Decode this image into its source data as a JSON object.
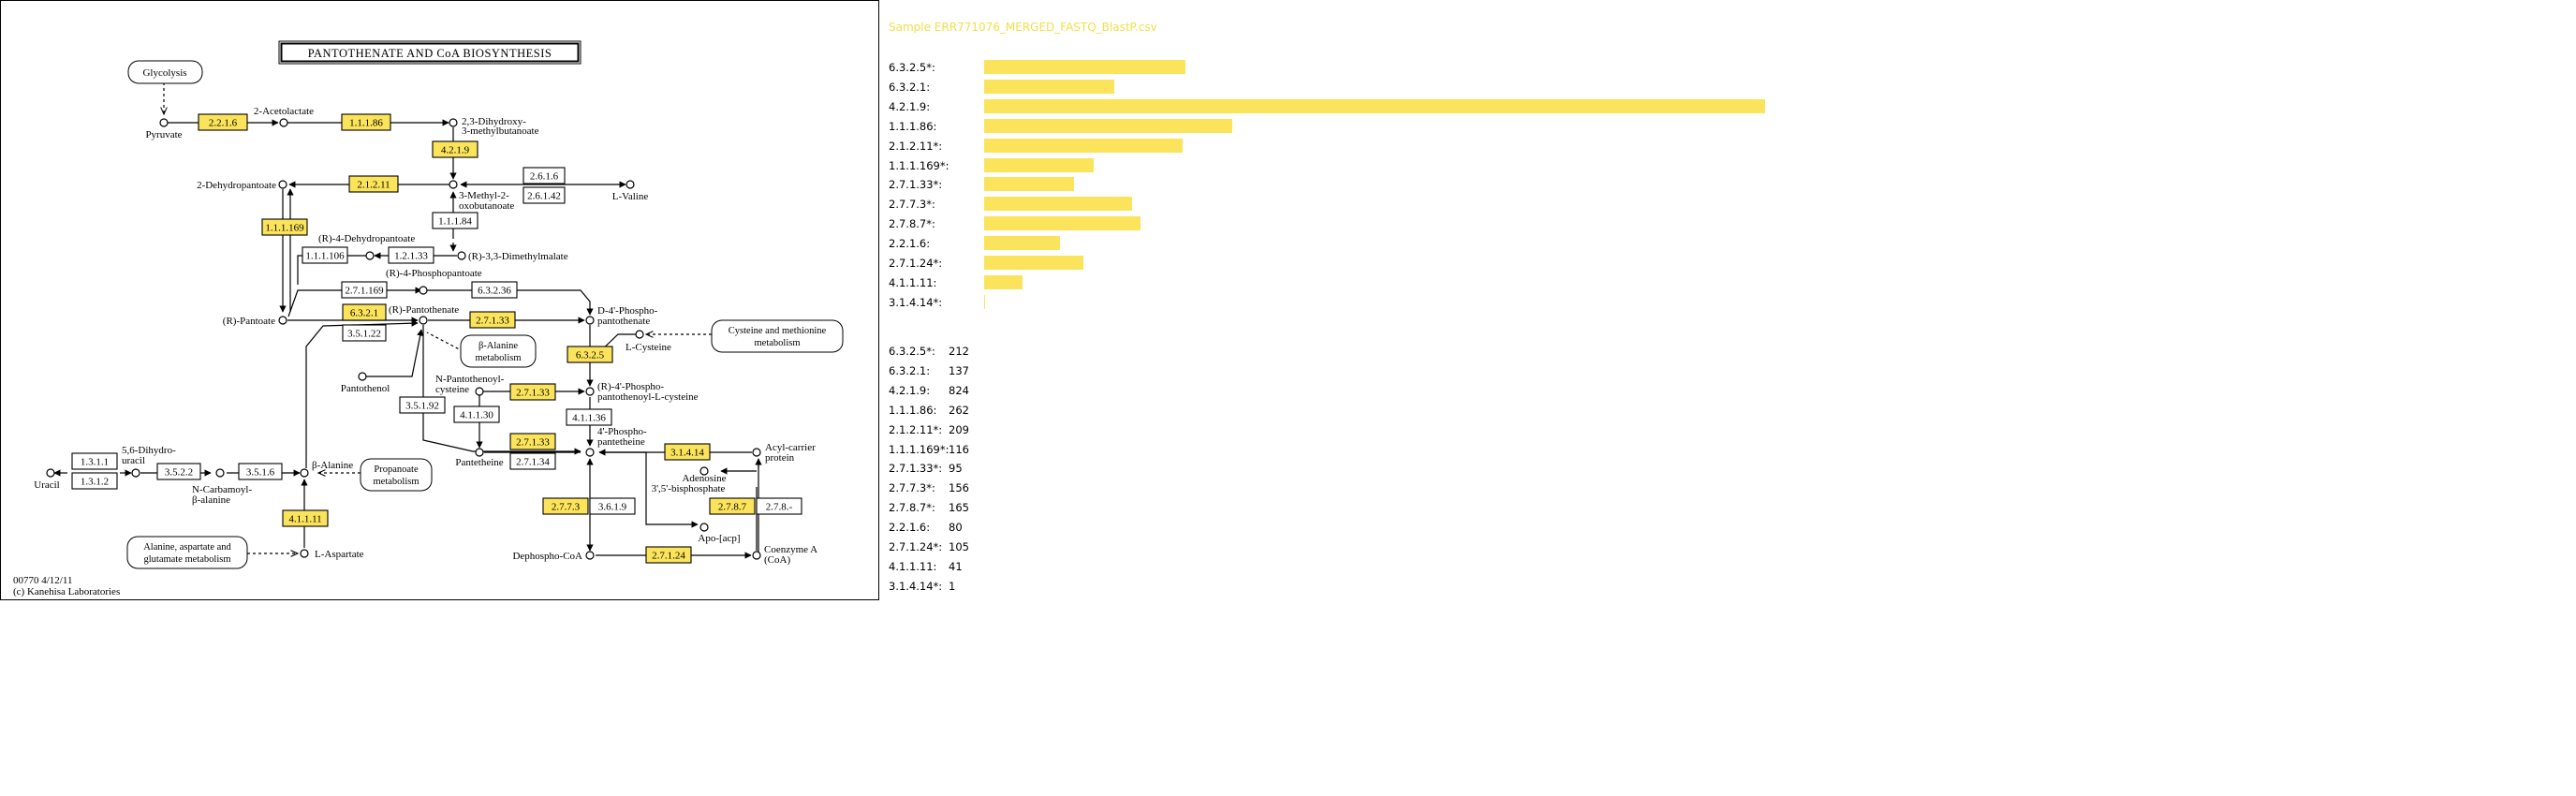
{
  "map": {
    "title": "PANTOTHENATE AND CoA BIOSYNTHESIS",
    "footer_code": "00770 4/12/11",
    "footer_copyright": "(c) Kanehisa Laboratories",
    "highlight_color": "#fbe45b",
    "ec_boxes": [
      {
        "label": "2.2.1.6",
        "hl": true
      },
      {
        "label": "1.1.1.86",
        "hl": true
      },
      {
        "label": "4.2.1.9",
        "hl": true
      },
      {
        "label": "2.1.2.11",
        "hl": true
      },
      {
        "label": "2.6.1.6",
        "hl": false
      },
      {
        "label": "2.6.1.42",
        "hl": false
      },
      {
        "label": "1.1.1.84",
        "hl": false
      },
      {
        "label": "1.1.1.169",
        "hl": true
      },
      {
        "label": "1.1.1.106",
        "hl": false
      },
      {
        "label": "1.2.1.33",
        "hl": false
      },
      {
        "label": "2.7.1.169",
        "hl": false
      },
      {
        "label": "6.3.2.36",
        "hl": false
      },
      {
        "label": "6.3.2.1",
        "hl": true
      },
      {
        "label": "2.7.1.33",
        "hl": true
      },
      {
        "label": "3.5.1.22",
        "hl": false
      },
      {
        "label": "6.3.2.5",
        "hl": true
      },
      {
        "label": "3.5.1.92",
        "hl": false
      },
      {
        "label": "2.7.1.33",
        "hl": true
      },
      {
        "label": "4.1.1.30",
        "hl": false
      },
      {
        "label": "4.1.1.36",
        "hl": false
      },
      {
        "label": "2.7.1.33",
        "hl": true
      },
      {
        "label": "2.7.1.34",
        "hl": false
      },
      {
        "label": "3.1.4.14",
        "hl": true
      },
      {
        "label": "1.3.1.1",
        "hl": false
      },
      {
        "label": "1.3.1.2",
        "hl": false
      },
      {
        "label": "3.5.2.2",
        "hl": false
      },
      {
        "label": "3.5.1.6",
        "hl": false
      },
      {
        "label": "4.1.1.11",
        "hl": true
      },
      {
        "label": "2.7.7.3",
        "hl": true
      },
      {
        "label": "3.6.1.9",
        "hl": false
      },
      {
        "label": "2.7.8.7",
        "hl": true
      },
      {
        "label": "2.7.8.-",
        "hl": false
      },
      {
        "label": "2.7.1.24",
        "hl": true
      }
    ],
    "pathway_links": [
      "Glycolysis",
      "β-Alanine metabolism",
      "Cysteine and methionine metabolism",
      "Propanoate metabolism",
      "Alanine, aspartate and glutamate metabolism"
    ],
    "compounds": [
      "Pyruvate",
      "2-Acetolactate",
      "2,3-Dihydroxy-3-methylbutanoate",
      "2-Dehydropantoate",
      "3-Methyl-2-oxobutanoate",
      "L-Valine",
      "(R)-4-Dehydropantoate",
      "(R)-3,3-Dimethylmalate",
      "(R)-4-Phosphopantoate",
      "(R)-Pantoate",
      "(R)-Pantothenate",
      "D-4'-Phosphopantothenate",
      "L-Cysteine",
      "Pantothenol",
      "N-Pantothenoyl-cysteine",
      "(R)-4'-Phosphopantothenoyl-L-cysteine",
      "Pantetheine",
      "4'-Phosphopantetheine",
      "Acyl-carrier protein",
      "Adenosine 3',5'-bisphosphate",
      "Apo-[acp]",
      "Uracil",
      "5,6-Dihydrouracil",
      "N-Carbamoyl-β-alanine",
      "β-Alanine",
      "L-Aspartate",
      "Dephospho-CoA",
      "Coenzyme A (CoA)"
    ]
  },
  "panel": {
    "title": "Sample ERR771076_MERGED_FASTQ_BlastP.csv",
    "bar_color": "#fbe45b",
    "max_count": 824,
    "rows": [
      {
        "label": "6.3.2.5*:",
        "count": 212
      },
      {
        "label": "6.3.2.1:",
        "count": 137
      },
      {
        "label": "4.2.1.9:",
        "count": 824
      },
      {
        "label": "1.1.1.86:",
        "count": 262
      },
      {
        "label": "2.1.2.11*:",
        "count": 209
      },
      {
        "label": "1.1.1.169*:",
        "count": 116
      },
      {
        "label": "2.7.1.33*:",
        "count": 95
      },
      {
        "label": "2.7.7.3*:",
        "count": 156
      },
      {
        "label": "2.7.8.7*:",
        "count": 165
      },
      {
        "label": "2.2.1.6:",
        "count": 80
      },
      {
        "label": "2.7.1.24*:",
        "count": 105
      },
      {
        "label": "4.1.1.11:",
        "count": 41
      },
      {
        "label": "3.1.4.14*:",
        "count": 1
      }
    ]
  }
}
